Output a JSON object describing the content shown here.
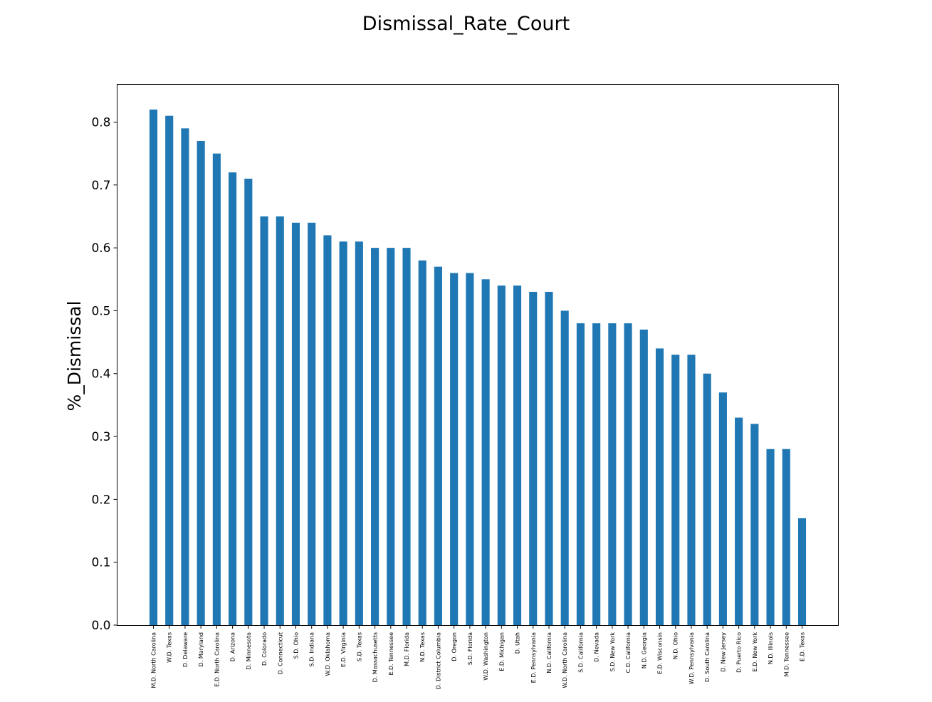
{
  "chart_data": {
    "type": "bar",
    "title": "Dismissal_Rate_Court",
    "xlabel": "",
    "ylabel": "%_Dismissal",
    "ylim": [
      0,
      0.86
    ],
    "yticks": [
      "0.0",
      "0.1",
      "0.2",
      "0.3",
      "0.4",
      "0.5",
      "0.6",
      "0.7",
      "0.8"
    ],
    "bar_color": "#1f77b4",
    "grid": false,
    "categories": [
      "M.D. North Carolina",
      "W.D. Texas",
      "D. Delaware",
      "D. Maryland",
      "E.D. North Carolina",
      "D. Arizona",
      "D. Minnesota",
      "D. Colorado",
      "D. Connecticut",
      "S.D. Ohio",
      "S.D. Indiana",
      "W.D. Oklahoma",
      "E.D. Virginia",
      "S.D. Texas",
      "D. Massachusetts",
      "E.D. Tennessee",
      "M.D. Florida",
      "N.D. Texas",
      "D. District Columbia",
      "D. Oregon",
      "S.D. Florida",
      "W.D. Washington",
      "E.D. Michigan",
      "D. Utah",
      "E.D. Pennsylvania",
      "N.D. California",
      "W.D. North Carolina",
      "S.D. California",
      "D. Nevada",
      "S.D. New York",
      "C.D. California",
      "N.D. Georgia",
      "E.D. Wisconsin",
      "N.D. Ohio",
      "W.D. Pennsylvania",
      "D. South Carolina",
      "D. New Jersey",
      "D. Puerto Rico",
      "E.D. New York",
      "N.D. Illinois",
      "M.D. Tennessee",
      "E.D. Texas"
    ],
    "values": [
      0.82,
      0.81,
      0.79,
      0.77,
      0.75,
      0.72,
      0.71,
      0.65,
      0.65,
      0.64,
      0.64,
      0.62,
      0.61,
      0.61,
      0.6,
      0.6,
      0.6,
      0.58,
      0.57,
      0.56,
      0.56,
      0.55,
      0.54,
      0.54,
      0.53,
      0.53,
      0.5,
      0.48,
      0.48,
      0.48,
      0.48,
      0.47,
      0.44,
      0.43,
      0.43,
      0.4,
      0.37,
      0.33,
      0.32,
      0.28,
      0.28,
      0.17
    ]
  }
}
